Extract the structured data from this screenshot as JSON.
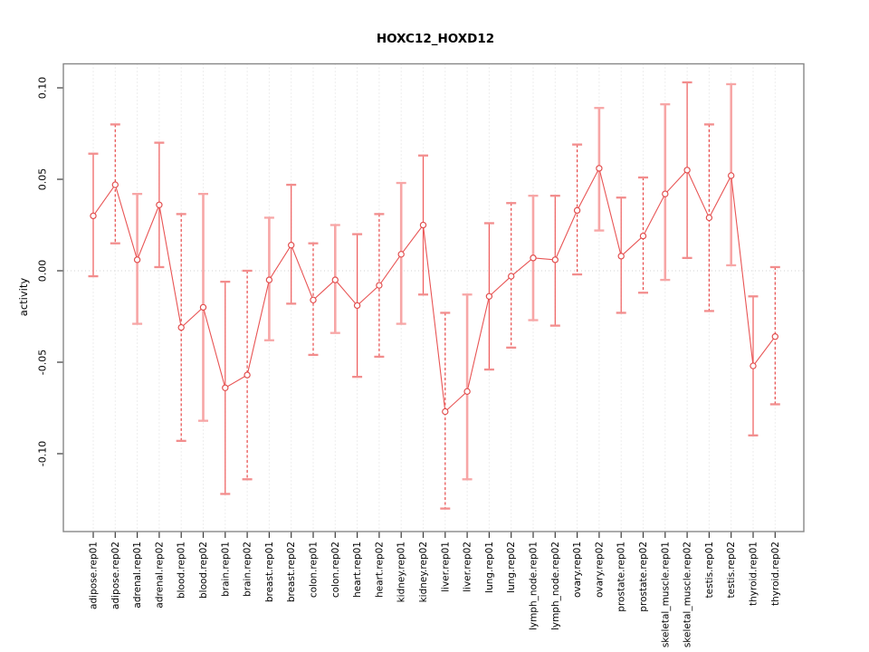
{
  "chart_data": {
    "type": "line",
    "subtype": "points-with-error-bars",
    "title": "HOXC12_HOXD12",
    "xlabel": "",
    "ylabel": "activity",
    "ylim": [
      -0.143,
      0.113
    ],
    "y_ticks": [
      0.1,
      0.05,
      0.0,
      -0.05,
      -0.1
    ],
    "y_tick_labels": [
      "0.10",
      "0.05",
      "0.00",
      "-0.05",
      "-0.10"
    ],
    "grid": "dotted vertical gridline at every category; dotted horizontal line at y=0",
    "legend": "none",
    "x_tick_label_rotation": -90,
    "categories": [
      "adipose.rep01",
      "adipose.rep02",
      "adrenal.rep01",
      "adrenal.rep02",
      "blood.rep01",
      "blood.rep02",
      "brain.rep01",
      "brain.rep02",
      "breast.rep01",
      "breast.rep02",
      "colon.rep01",
      "colon.rep02",
      "heart.rep01",
      "heart.rep02",
      "kidney.rep01",
      "kidney.rep02",
      "liver.rep01",
      "liver.rep02",
      "lung.rep01",
      "lung.rep02",
      "lymph_node.rep01",
      "lymph_node.rep02",
      "ovary.rep01",
      "ovary.rep02",
      "prostate.rep01",
      "prostate.rep02",
      "skeletal_muscle.rep01",
      "skeletal_muscle.rep02",
      "testis.rep01",
      "testis.rep02",
      "thyroid.rep01",
      "thyroid.rep02"
    ],
    "values": [
      0.03,
      0.047,
      0.006,
      0.036,
      -0.031,
      -0.02,
      -0.064,
      -0.057,
      -0.005,
      0.014,
      -0.016,
      -0.005,
      -0.019,
      -0.008,
      0.009,
      0.025,
      -0.077,
      -0.066,
      -0.014,
      -0.003,
      0.007,
      0.006,
      0.033,
      0.056,
      0.008,
      0.019,
      0.042,
      0.055,
      0.029,
      0.052,
      -0.052,
      -0.036
    ],
    "ci_low": [
      -0.003,
      0.015,
      -0.029,
      0.002,
      -0.093,
      -0.082,
      -0.122,
      -0.114,
      -0.038,
      -0.018,
      -0.046,
      -0.034,
      -0.058,
      -0.047,
      -0.029,
      -0.013,
      -0.13,
      -0.114,
      -0.054,
      -0.042,
      -0.027,
      -0.03,
      -0.002,
      0.022,
      -0.023,
      -0.012,
      -0.005,
      0.007,
      -0.022,
      0.003,
      -0.09,
      -0.073
    ],
    "ci_high": [
      0.064,
      0.08,
      0.042,
      0.07,
      0.031,
      0.042,
      -0.006,
      0.0,
      0.029,
      0.047,
      0.015,
      0.025,
      0.02,
      0.031,
      0.048,
      0.063,
      -0.023,
      -0.013,
      0.026,
      0.037,
      0.041,
      0.041,
      0.069,
      0.089,
      0.04,
      0.051,
      0.091,
      0.103,
      0.08,
      0.102,
      -0.014,
      0.002
    ],
    "colors": {
      "point_stroke": "#e14b4b",
      "connect_line": "#e85454",
      "bar_solid_thin": "#ee5b5b",
      "bar_dashed": "#e84848",
      "bar_solid_thick": "#f7a6a6",
      "bar_cap": "#f28d8d",
      "gridline": "#dcdcdc",
      "zero_line": "#d2d2d2",
      "plot_border": "#878787",
      "tick": "#3a3a3a",
      "text": "#000000"
    }
  }
}
